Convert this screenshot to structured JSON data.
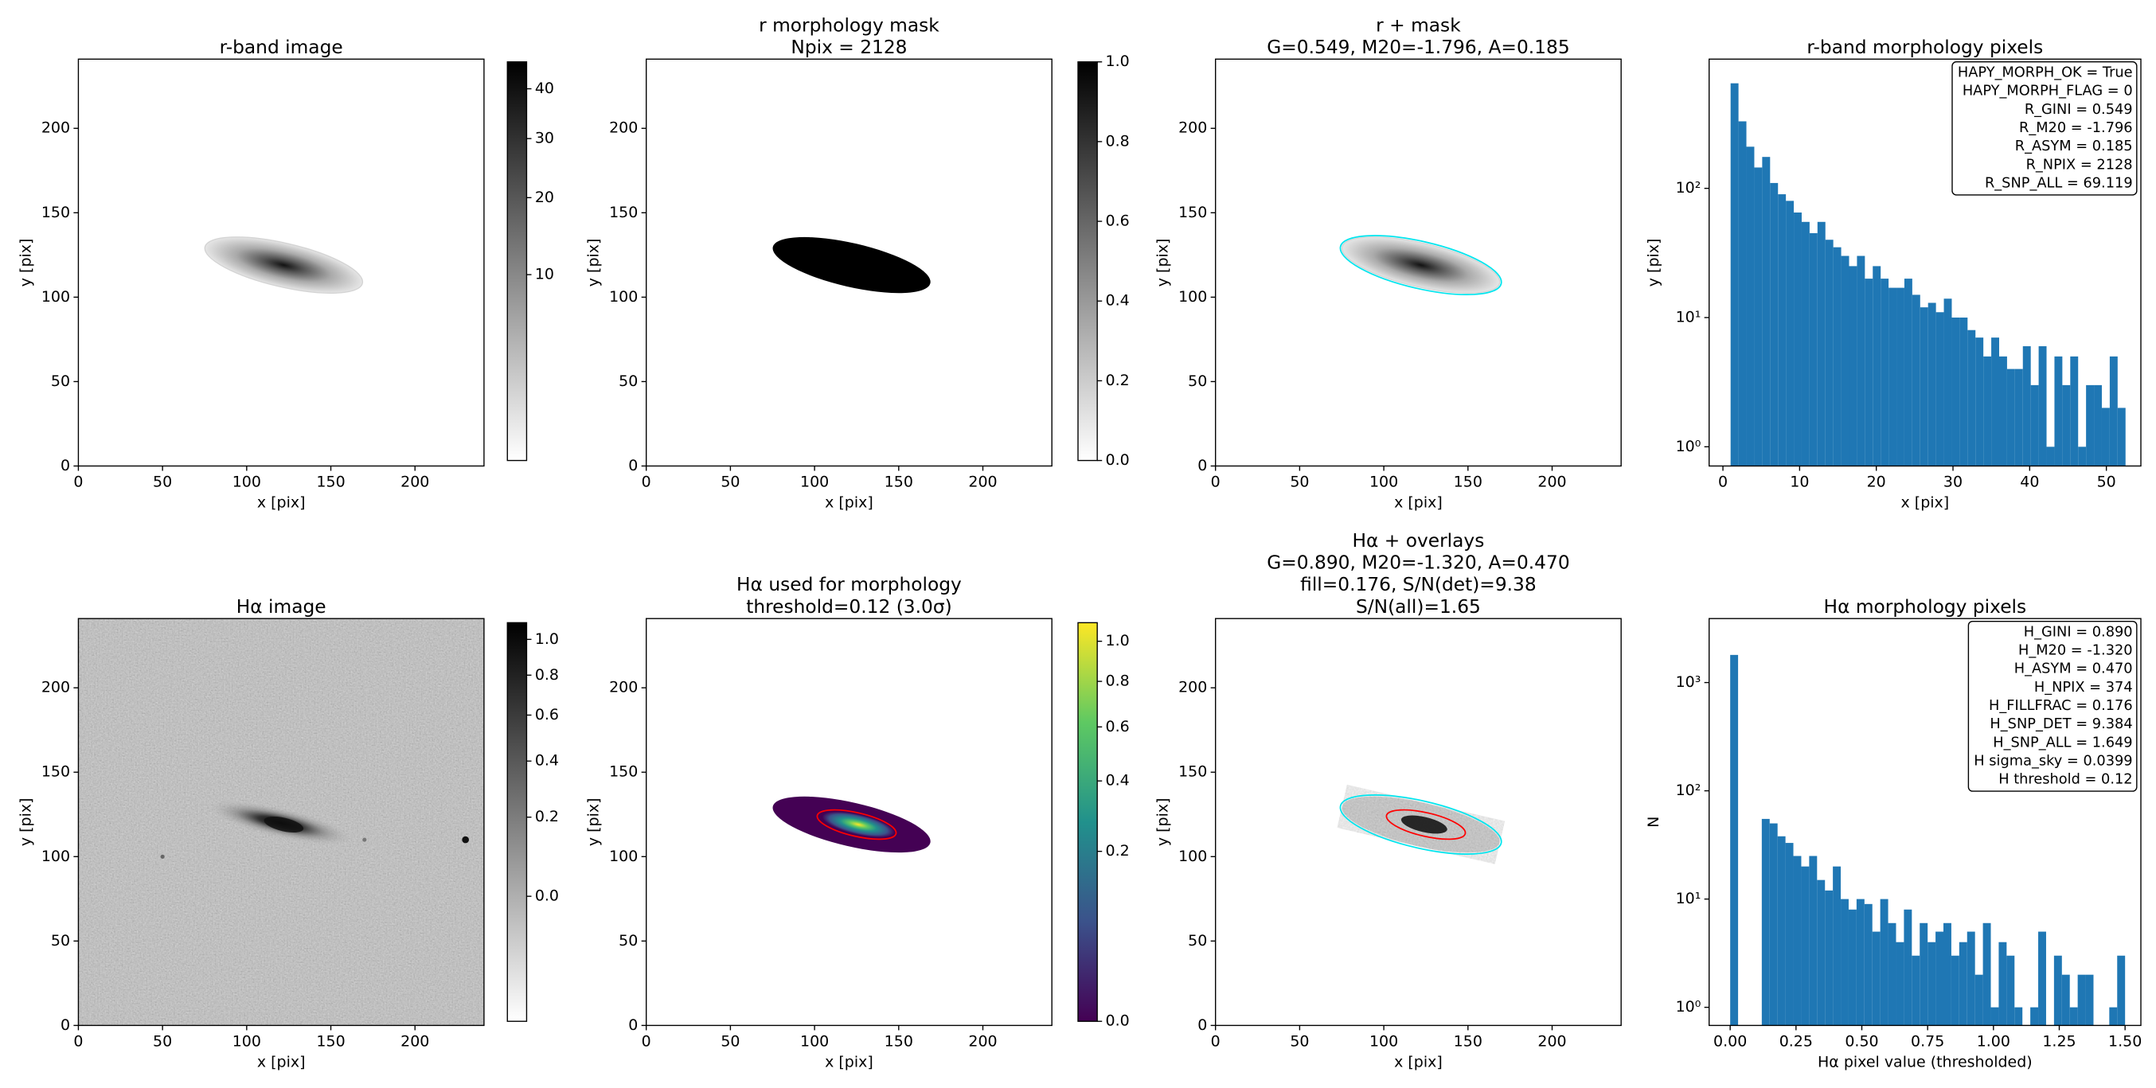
{
  "chart_data": [
    {
      "type": "image",
      "title": [
        "r-band image"
      ],
      "xlabel": "x [pix]",
      "ylabel": "y [pix]",
      "xlim": [
        0,
        241
      ],
      "ylim": [
        0,
        241
      ],
      "xticks": [
        0,
        50,
        100,
        150,
        200
      ],
      "yticks": [
        0,
        50,
        100,
        150,
        200
      ],
      "layers": [
        "galaxy"
      ],
      "colorbar": {
        "colormap": "gray_r",
        "stretch": "sqrt",
        "clim": [
          0,
          46
        ],
        "ticks": [
          10,
          20,
          30,
          40
        ]
      }
    },
    {
      "type": "image",
      "title": [
        "r morphology mask",
        "Npix = 2128"
      ],
      "xlabel": "x [pix]",
      "ylabel": "y [pix]",
      "xlim": [
        0,
        241
      ],
      "ylim": [
        0,
        241
      ],
      "xticks": [
        0,
        50,
        100,
        150,
        200
      ],
      "yticks": [
        0,
        50,
        100,
        150,
        200
      ],
      "layers": [
        "mask"
      ],
      "colorbar": {
        "colormap": "gray_r",
        "stretch": "linear",
        "clim": [
          0,
          1
        ],
        "ticks": [
          {
            "value": 0,
            "label": "0.0"
          },
          {
            "value": 0.2,
            "label": "0.2"
          },
          {
            "value": 0.4,
            "label": "0.4"
          },
          {
            "value": 0.6,
            "label": "0.6"
          },
          {
            "value": 0.8,
            "label": "0.8"
          },
          {
            "value": 1,
            "label": "1.0"
          }
        ]
      }
    },
    {
      "type": "image",
      "title": [
        "r + mask",
        "G=0.549, M20=-1.796, A=0.185"
      ],
      "xlabel": "x [pix]",
      "ylabel": "y [pix]",
      "xlim": [
        0,
        241
      ],
      "ylim": [
        0,
        241
      ],
      "xticks": [
        0,
        50,
        100,
        150,
        200
      ],
      "yticks": [
        0,
        50,
        100,
        150,
        200
      ],
      "layers": [
        "galaxy",
        "mask-contour"
      ]
    },
    {
      "type": "histogram",
      "title": [
        "r-band morphology pixels"
      ],
      "xlabel": "x [pix]",
      "ylabel": "y [pix]",
      "log_y": true,
      "color": "#1f77b4",
      "xlim": [
        -1.8,
        54.5
      ],
      "ylim": [
        0.71,
        1000
      ],
      "xticks": [
        0,
        10,
        20,
        30,
        40,
        50
      ],
      "yticks": [
        {
          "value": 1,
          "label": "10⁰"
        },
        {
          "value": 10,
          "label": "10¹"
        },
        {
          "value": 100,
          "label": "10²"
        }
      ],
      "bins": [
        1.0,
        2.03,
        3.06,
        4.09,
        5.12,
        6.15,
        7.18,
        8.21,
        9.24,
        10.27,
        11.3,
        12.33,
        13.36,
        14.39,
        15.42,
        16.45,
        17.48,
        18.51,
        19.54,
        20.57,
        21.6,
        22.63,
        23.66,
        24.69,
        25.72,
        26.75,
        27.78,
        28.81,
        29.84,
        30.87,
        31.9,
        32.93,
        33.96,
        34.99,
        36.02,
        37.05,
        38.08,
        39.11,
        40.14,
        41.17,
        42.2,
        43.23,
        44.26,
        45.29,
        46.32,
        47.35,
        48.38,
        49.41,
        50.44,
        51.47,
        52.5
      ],
      "counts": [
        650,
        330,
        210,
        145,
        175,
        110,
        90,
        80,
        65,
        55,
        45,
        55,
        40,
        35,
        30,
        25,
        30,
        20,
        25,
        20,
        17,
        17,
        20,
        15,
        12,
        13,
        11,
        14,
        10,
        10,
        8,
        7,
        5,
        7,
        5,
        4,
        4,
        6,
        3,
        6,
        1,
        5,
        3,
        5,
        1,
        3,
        3,
        2,
        5,
        2
      ],
      "annotation": [
        "HAPY_MORPH_OK = True",
        "HAPY_MORPH_FLAG = 0",
        "R_GINI = 0.549",
        "R_M20 = -1.796",
        "R_ASYM = 0.185",
        "R_NPIX = 2128",
        "R_SNP_ALL = 69.119"
      ]
    },
    {
      "type": "image",
      "title": [
        "Hα image"
      ],
      "xlabel": "x [pix]",
      "ylabel": "y [pix]",
      "xlim": [
        0,
        241
      ],
      "ylim": [
        0,
        241
      ],
      "xticks": [
        0,
        50,
        100,
        150,
        200
      ],
      "yticks": [
        0,
        50,
        100,
        150,
        200
      ],
      "layers": [
        "noise",
        "galaxy-halpha",
        "star"
      ],
      "colorbar": {
        "colormap": "gray_r",
        "stretch": "sqrt",
        "clim": [
          -0.12,
          1.1
        ],
        "ticks": [
          {
            "value": 0,
            "label": "0.0"
          },
          {
            "value": 0.2,
            "label": "0.2"
          },
          {
            "value": 0.4,
            "label": "0.4"
          },
          {
            "value": 0.6,
            "label": "0.6"
          },
          {
            "value": 0.8,
            "label": "0.8"
          },
          {
            "value": 1,
            "label": "1.0"
          }
        ]
      }
    },
    {
      "type": "image",
      "title": [
        "Hα used for morphology",
        "threshold=0.12 (3.0σ)"
      ],
      "xlabel": "x [pix]",
      "ylabel": "y [pix]",
      "xlim": [
        0,
        241
      ],
      "ylim": [
        0,
        241
      ],
      "xticks": [
        0,
        50,
        100,
        150,
        200
      ],
      "yticks": [
        0,
        50,
        100,
        150,
        200
      ],
      "layers": [
        "masked-halpha",
        "halpha-contour"
      ],
      "colorbar": {
        "colormap": "viridis",
        "stretch": "sqrt",
        "clim": [
          0,
          1.1
        ],
        "ticks": [
          {
            "value": 0,
            "label": "0.0"
          },
          {
            "value": 0.2,
            "label": "0.2"
          },
          {
            "value": 0.4,
            "label": "0.4"
          },
          {
            "value": 0.6,
            "label": "0.6"
          },
          {
            "value": 0.8,
            "label": "0.8"
          },
          {
            "value": 1,
            "label": "1.0"
          }
        ]
      }
    },
    {
      "type": "image",
      "title": [
        "Hα + overlays",
        "G=0.890, M20=-1.320, A=0.470",
        "fill=0.176, S/N(det)=9.38",
        "S/N(all)=1.65"
      ],
      "xlabel": "x [pix]",
      "ylabel": "y [pix]",
      "xlim": [
        0,
        241
      ],
      "ylim": [
        0,
        241
      ],
      "xticks": [
        0,
        50,
        100,
        150,
        200
      ],
      "yticks": [
        0,
        50,
        100,
        150,
        200
      ],
      "layers": [
        "masked-speckle",
        "mask-contour",
        "halpha-contour"
      ]
    },
    {
      "type": "histogram",
      "title": [
        "Hα morphology pixels"
      ],
      "xlabel": "Hα pixel value (thresholded)",
      "ylabel": "N",
      "log_y": true,
      "color": "#1f77b4",
      "xlim": [
        -0.08,
        1.56
      ],
      "ylim": [
        0.68,
        3900
      ],
      "xticks": [
        {
          "value": 0,
          "label": "0.00"
        },
        {
          "value": 0.25,
          "label": "0.25"
        },
        {
          "value": 0.5,
          "label": "0.50"
        },
        {
          "value": 0.75,
          "label": "0.75"
        },
        {
          "value": 1,
          "label": "1.00"
        },
        {
          "value": 1.25,
          "label": "1.25"
        },
        {
          "value": 1.5,
          "label": "1.50"
        }
      ],
      "yticks": [
        {
          "value": 1,
          "label": "10⁰"
        },
        {
          "value": 10,
          "label": "10¹"
        },
        {
          "value": 100,
          "label": "10²"
        },
        {
          "value": 1000,
          "label": "10³"
        }
      ],
      "bins": [
        0,
        0.03,
        0.06,
        0.09,
        0.12,
        0.15,
        0.18,
        0.21,
        0.24,
        0.27,
        0.3,
        0.33,
        0.36,
        0.39,
        0.42,
        0.45,
        0.48,
        0.51,
        0.54,
        0.57,
        0.6,
        0.63,
        0.66,
        0.69,
        0.72,
        0.75,
        0.78,
        0.81,
        0.84,
        0.87,
        0.9,
        0.93,
        0.96,
        0.99,
        1.02,
        1.05,
        1.08,
        1.11,
        1.14,
        1.17,
        1.2,
        1.23,
        1.26,
        1.29,
        1.32,
        1.35,
        1.38,
        1.41,
        1.44,
        1.47,
        1.5
      ],
      "counts": [
        1800,
        0,
        0,
        0,
        55,
        50,
        38,
        33,
        25,
        20,
        25,
        15,
        12,
        20,
        10,
        8,
        10,
        9,
        5,
        10,
        6,
        4,
        8,
        3,
        6,
        4,
        5,
        6,
        3,
        4,
        5,
        2,
        6,
        1,
        4,
        3,
        1,
        0,
        1,
        5,
        0,
        3,
        2,
        1,
        2,
        2,
        0,
        0,
        1,
        3
      ],
      "annotation": [
        "H_GINI = 0.890",
        "H_M20 = -1.320",
        "H_ASYM = 0.470",
        "H_NPIX = 374",
        "H_FILLFRAC = 0.176",
        "H_SNP_DET = 9.384",
        "H_SNP_ALL = 1.649",
        "H sigma_sky = 0.0399",
        "H threshold = 0.12"
      ]
    }
  ]
}
